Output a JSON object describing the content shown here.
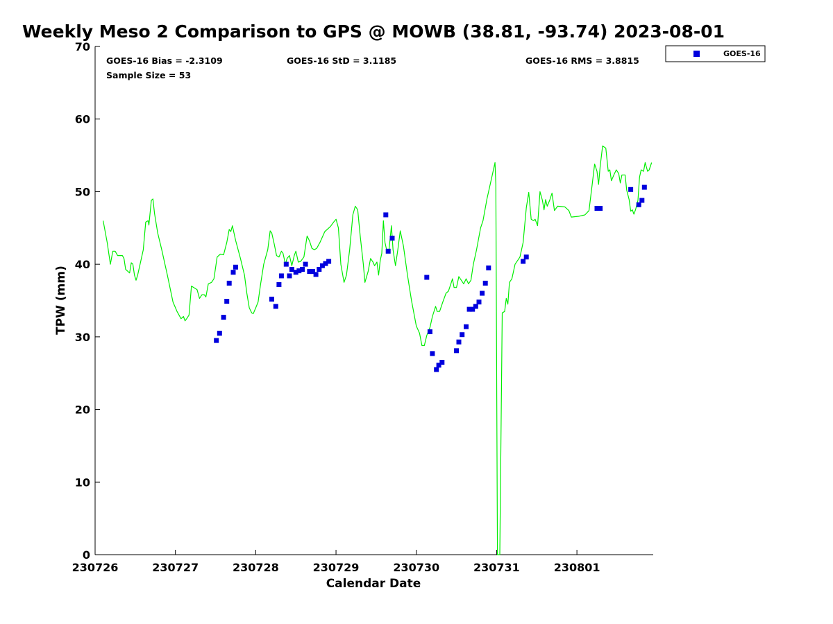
{
  "chart_data": {
    "type": "scatter",
    "title": "Weekly Meso 2 Comparison to GPS @ MOWB (38.81, -93.74) 2023-08-01",
    "xlabel": "Calendar Date",
    "ylabel": "TPW (mm)",
    "xlim": [
      0,
      6.95
    ],
    "ylim": [
      0,
      70
    ],
    "x_ticks": [
      {
        "value": 0,
        "label": "230726"
      },
      {
        "value": 1,
        "label": "230727"
      },
      {
        "value": 2,
        "label": "230728"
      },
      {
        "value": 3,
        "label": "230729"
      },
      {
        "value": 4,
        "label": "230730"
      },
      {
        "value": 5,
        "label": "230731"
      },
      {
        "value": 6,
        "label": "230801"
      }
    ],
    "y_ticks": [
      0,
      10,
      20,
      30,
      40,
      50,
      60,
      70
    ],
    "grid": false,
    "legend": {
      "position": "outside-top-right",
      "entries": [
        {
          "label": "GOES-16",
          "color": "#0000dd",
          "marker": "square"
        }
      ]
    },
    "stats": {
      "bias": "GOES-16 Bias = -2.3109",
      "std": "GOES-16 StD = 3.1185",
      "rms": "GOES-16 RMS = 3.8815",
      "sample": "Sample Size = 53"
    },
    "series": [
      {
        "name": "GPS",
        "kind": "line",
        "color": "#00ee00",
        "points": [
          [
            0.1,
            46
          ],
          [
            0.15,
            43
          ],
          [
            0.19,
            40
          ],
          [
            0.22,
            41.8
          ],
          [
            0.25,
            41.8
          ],
          [
            0.28,
            41.2
          ],
          [
            0.3,
            41.2
          ],
          [
            0.34,
            41.2
          ],
          [
            0.36,
            40.8
          ],
          [
            0.38,
            39.3
          ],
          [
            0.41,
            39
          ],
          [
            0.43,
            38.8
          ],
          [
            0.45,
            40.2
          ],
          [
            0.47,
            40
          ],
          [
            0.49,
            38.5
          ],
          [
            0.51,
            37.8
          ],
          [
            0.53,
            38.5
          ],
          [
            0.56,
            40
          ],
          [
            0.6,
            42
          ],
          [
            0.63,
            45.8
          ],
          [
            0.66,
            46
          ],
          [
            0.67,
            45.4
          ],
          [
            0.7,
            48.8
          ],
          [
            0.72,
            49
          ],
          [
            0.74,
            47
          ],
          [
            0.78,
            44.3
          ],
          [
            0.83,
            42
          ],
          [
            0.9,
            38.5
          ],
          [
            0.97,
            34.8
          ],
          [
            1.02,
            33.5
          ],
          [
            1.07,
            32.5
          ],
          [
            1.1,
            32.8
          ],
          [
            1.12,
            32.2
          ],
          [
            1.14,
            32.5
          ],
          [
            1.17,
            33
          ],
          [
            1.2,
            37
          ],
          [
            1.27,
            36.5
          ],
          [
            1.3,
            35.3
          ],
          [
            1.33,
            35.8
          ],
          [
            1.36,
            35.8
          ],
          [
            1.38,
            35.5
          ],
          [
            1.41,
            37.3
          ],
          [
            1.45,
            37.5
          ],
          [
            1.48,
            38
          ],
          [
            1.52,
            41
          ],
          [
            1.56,
            41.4
          ],
          [
            1.6,
            41.3
          ],
          [
            1.64,
            43
          ],
          [
            1.67,
            44.8
          ],
          [
            1.69,
            44.5
          ],
          [
            1.71,
            45.3
          ],
          [
            1.75,
            43.3
          ],
          [
            1.81,
            40.8
          ],
          [
            1.86,
            38.5
          ],
          [
            1.89,
            36
          ],
          [
            1.92,
            34
          ],
          [
            1.95,
            33.3
          ],
          [
            1.97,
            33.2
          ],
          [
            2.0,
            34
          ],
          [
            2.03,
            34.8
          ],
          [
            2.06,
            37.2
          ],
          [
            2.1,
            40
          ],
          [
            2.15,
            42
          ],
          [
            2.18,
            44.6
          ],
          [
            2.2,
            44.3
          ],
          [
            2.23,
            42.8
          ],
          [
            2.26,
            41.2
          ],
          [
            2.29,
            41
          ],
          [
            2.32,
            41.8
          ],
          [
            2.34,
            41.5
          ],
          [
            2.37,
            40
          ],
          [
            2.39,
            40.8
          ],
          [
            2.42,
            41.2
          ],
          [
            2.45,
            39.8
          ],
          [
            2.48,
            41.2
          ],
          [
            2.5,
            41.8
          ],
          [
            2.53,
            40.3
          ],
          [
            2.56,
            40.4
          ],
          [
            2.6,
            41
          ],
          [
            2.64,
            43.9
          ],
          [
            2.67,
            43.2
          ],
          [
            2.7,
            42.2
          ],
          [
            2.73,
            42
          ],
          [
            2.76,
            42.2
          ],
          [
            2.8,
            43
          ],
          [
            2.86,
            44.5
          ],
          [
            2.93,
            45.2
          ],
          [
            2.97,
            45.8
          ],
          [
            3.0,
            46.2
          ],
          [
            3.03,
            45
          ],
          [
            3.06,
            40
          ],
          [
            3.1,
            37.5
          ],
          [
            3.13,
            38.5
          ],
          [
            3.17,
            42
          ],
          [
            3.21,
            46.8
          ],
          [
            3.24,
            48
          ],
          [
            3.27,
            47.5
          ],
          [
            3.3,
            44
          ],
          [
            3.34,
            40
          ],
          [
            3.36,
            37.5
          ],
          [
            3.4,
            39
          ],
          [
            3.43,
            40.8
          ],
          [
            3.46,
            40.3
          ],
          [
            3.48,
            39.8
          ],
          [
            3.51,
            40.3
          ],
          [
            3.53,
            38.5
          ],
          [
            3.55,
            40.5
          ],
          [
            3.57,
            41.5
          ],
          [
            3.59,
            46
          ],
          [
            3.61,
            43
          ],
          [
            3.63,
            42
          ],
          [
            3.66,
            42
          ],
          [
            3.69,
            45.3
          ],
          [
            3.71,
            42
          ],
          [
            3.74,
            39.8
          ],
          [
            3.77,
            42
          ],
          [
            3.8,
            44.6
          ],
          [
            3.84,
            42.5
          ],
          [
            3.89,
            38.5
          ],
          [
            3.94,
            35
          ],
          [
            4.0,
            31.5
          ],
          [
            4.04,
            30.5
          ],
          [
            4.07,
            28.8
          ],
          [
            4.1,
            28.8
          ],
          [
            4.13,
            30.2
          ],
          [
            4.17,
            31.3
          ],
          [
            4.2,
            32.8
          ],
          [
            4.24,
            34.2
          ],
          [
            4.26,
            33.5
          ],
          [
            4.29,
            33.5
          ],
          [
            4.33,
            34.8
          ],
          [
            4.37,
            36
          ],
          [
            4.4,
            36.3
          ],
          [
            4.43,
            37.3
          ],
          [
            4.45,
            38
          ],
          [
            4.47,
            36.8
          ],
          [
            4.5,
            36.8
          ],
          [
            4.53,
            38.3
          ],
          [
            4.56,
            37.8
          ],
          [
            4.59,
            37.3
          ],
          [
            4.62,
            38
          ],
          [
            4.65,
            37.3
          ],
          [
            4.68,
            37.8
          ],
          [
            4.71,
            40
          ],
          [
            4.75,
            42
          ],
          [
            4.8,
            45
          ],
          [
            4.83,
            46
          ],
          [
            4.88,
            49
          ],
          [
            4.94,
            52
          ],
          [
            4.98,
            54
          ],
          [
            4.99,
            51
          ],
          [
            5.01,
            0
          ],
          [
            5.04,
            0
          ],
          [
            5.07,
            33.3
          ],
          [
            5.1,
            33.5
          ],
          [
            5.12,
            35.3
          ],
          [
            5.14,
            34.5
          ],
          [
            5.16,
            37.5
          ],
          [
            5.19,
            38
          ],
          [
            5.23,
            40
          ],
          [
            5.26,
            40.5
          ],
          [
            5.29,
            41
          ],
          [
            5.33,
            43
          ],
          [
            5.37,
            47.8
          ],
          [
            5.4,
            49.9
          ],
          [
            5.43,
            46.2
          ],
          [
            5.46,
            46
          ],
          [
            5.48,
            46.2
          ],
          [
            5.51,
            45.3
          ],
          [
            5.54,
            50
          ],
          [
            5.57,
            48.8
          ],
          [
            5.59,
            47.5
          ],
          [
            5.61,
            48.9
          ],
          [
            5.63,
            48
          ],
          [
            5.66,
            48.8
          ],
          [
            5.69,
            49.8
          ],
          [
            5.72,
            47.4
          ],
          [
            5.76,
            48
          ],
          [
            5.85,
            47.9
          ],
          [
            5.9,
            47.4
          ],
          [
            5.93,
            46.5
          ],
          [
            6.02,
            46.6
          ],
          [
            6.1,
            46.8
          ],
          [
            6.15,
            47.4
          ],
          [
            6.19,
            51
          ],
          [
            6.22,
            53.8
          ],
          [
            6.25,
            52.8
          ],
          [
            6.27,
            51
          ],
          [
            6.29,
            53.5
          ],
          [
            6.32,
            56.3
          ],
          [
            6.36,
            56
          ],
          [
            6.39,
            52.8
          ],
          [
            6.41,
            53
          ],
          [
            6.43,
            51.5
          ],
          [
            6.46,
            52.3
          ],
          [
            6.49,
            53
          ],
          [
            6.52,
            52.5
          ],
          [
            6.54,
            51.2
          ],
          [
            6.56,
            52.3
          ],
          [
            6.6,
            52.3
          ],
          [
            6.62,
            50.2
          ],
          [
            6.65,
            48.9
          ],
          [
            6.67,
            47.3
          ],
          [
            6.69,
            47.5
          ],
          [
            6.71,
            46.9
          ],
          [
            6.73,
            47.5
          ],
          [
            6.76,
            48.8
          ],
          [
            6.78,
            52
          ],
          [
            6.8,
            53
          ],
          [
            6.83,
            52.8
          ],
          [
            6.85,
            54
          ],
          [
            6.88,
            52.8
          ],
          [
            6.9,
            53
          ],
          [
            6.93,
            54
          ]
        ]
      },
      {
        "name": "GOES-16",
        "kind": "scatter",
        "color": "#0000dd",
        "points": [
          [
            1.51,
            29.5
          ],
          [
            1.55,
            30.5
          ],
          [
            1.6,
            32.7
          ],
          [
            1.64,
            34.9
          ],
          [
            1.67,
            37.4
          ],
          [
            1.72,
            38.9
          ],
          [
            1.75,
            39.6
          ],
          [
            2.2,
            35.2
          ],
          [
            2.25,
            34.2
          ],
          [
            2.29,
            37.2
          ],
          [
            2.32,
            38.4
          ],
          [
            2.38,
            40
          ],
          [
            2.42,
            38.4
          ],
          [
            2.45,
            39.3
          ],
          [
            2.5,
            38.9
          ],
          [
            2.54,
            39.1
          ],
          [
            2.58,
            39.3
          ],
          [
            2.62,
            40
          ],
          [
            2.67,
            39
          ],
          [
            2.71,
            39
          ],
          [
            2.75,
            38.6
          ],
          [
            2.79,
            39.3
          ],
          [
            2.83,
            39.8
          ],
          [
            2.87,
            40.1
          ],
          [
            2.91,
            40.4
          ],
          [
            3.62,
            46.8
          ],
          [
            3.65,
            41.8
          ],
          [
            3.7,
            43.6
          ],
          [
            4.13,
            38.2
          ],
          [
            4.17,
            30.7
          ],
          [
            4.2,
            27.7
          ],
          [
            4.25,
            25.5
          ],
          [
            4.28,
            26.1
          ],
          [
            4.32,
            26.5
          ],
          [
            4.5,
            28.1
          ],
          [
            4.53,
            29.3
          ],
          [
            4.57,
            30.3
          ],
          [
            4.62,
            31.4
          ],
          [
            4.66,
            33.8
          ],
          [
            4.7,
            33.8
          ],
          [
            4.74,
            34.2
          ],
          [
            4.78,
            34.8
          ],
          [
            4.82,
            36
          ],
          [
            4.86,
            37.4
          ],
          [
            4.9,
            39.5
          ],
          [
            5.33,
            40.4
          ],
          [
            5.37,
            41
          ],
          [
            6.25,
            47.7
          ],
          [
            6.29,
            47.7
          ],
          [
            6.67,
            50.3
          ],
          [
            6.77,
            48.2
          ],
          [
            6.81,
            48.8
          ],
          [
            6.84,
            50.6
          ]
        ]
      }
    ]
  }
}
